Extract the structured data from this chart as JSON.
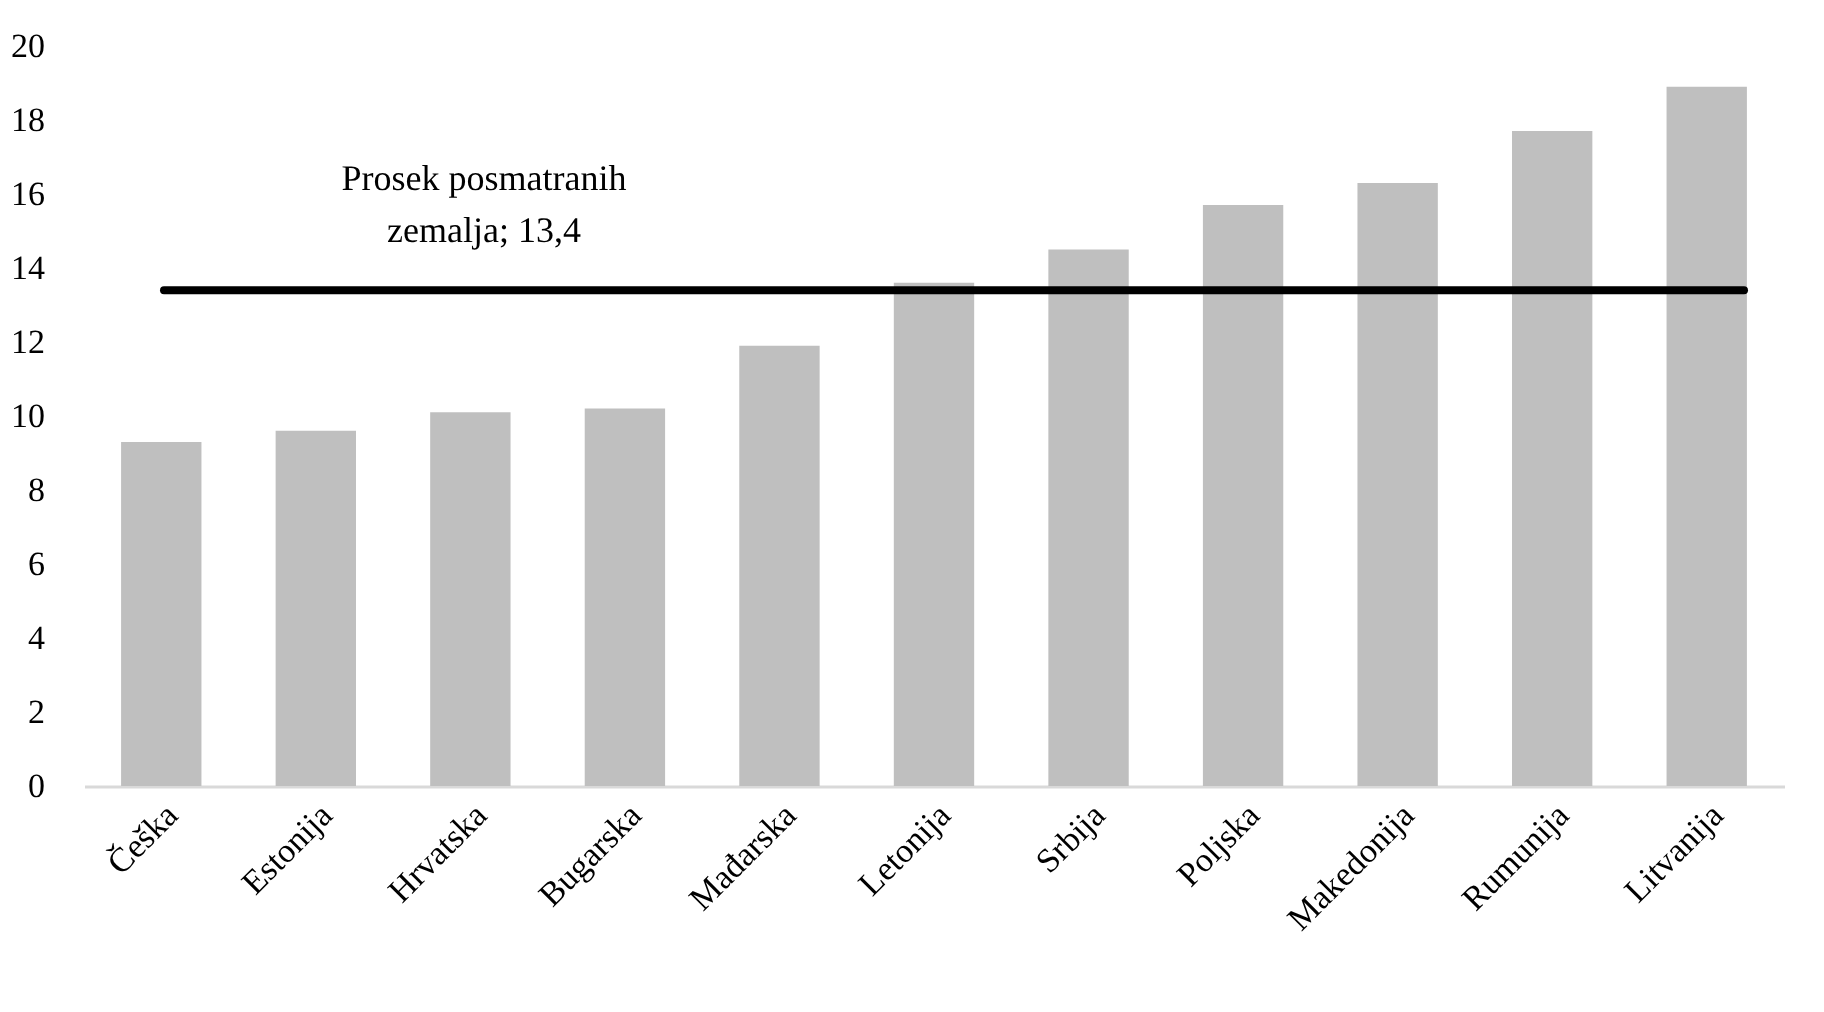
{
  "chart_data": {
    "type": "bar",
    "categories": [
      "Češka",
      "Estonija",
      "Hrvatska",
      "Bugarska",
      "Mađarska",
      "Letonija",
      "Srbija",
      "Poljska",
      "Makedonija",
      "Rumunija",
      "Litvanija"
    ],
    "values": [
      9.3,
      9.6,
      10.1,
      10.2,
      11.9,
      13.6,
      14.5,
      15.7,
      16.3,
      17.7,
      18.9
    ],
    "color": "#bfbfbf",
    "ylim": [
      0,
      20
    ],
    "yticks": [
      0,
      2,
      4,
      6,
      8,
      10,
      12,
      14,
      16,
      18,
      20
    ],
    "grid": false,
    "ref_lines": [
      {
        "axis": "y",
        "value": 13.4,
        "label": "Prosek posmatranih\nzemalja; 13,4",
        "color": "#000000"
      }
    ]
  }
}
